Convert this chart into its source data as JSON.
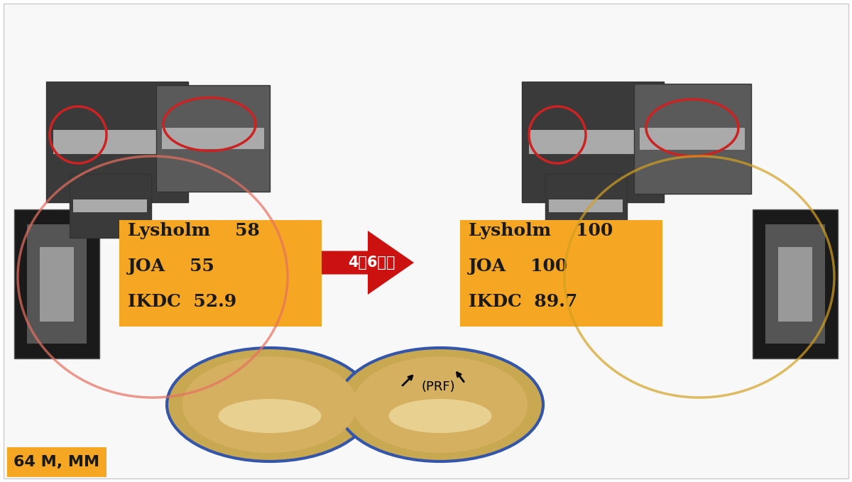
{
  "bg_color": "#ffffff",
  "label_box_color": "#f5a623",
  "label_text": "64 M, MM",
  "label_text_color": "#1a1a1a",
  "before_box_color": "#f5a623",
  "after_box_color": "#f5a623",
  "before_lines": [
    "IKDC  52.9",
    "JOA    55",
    "Lysholm    58"
  ],
  "after_lines": [
    "IKDC  89.7",
    "JOA    100",
    "Lysholm    100"
  ],
  "arrow_label": "4年6ヶ月",
  "arrow_color": "#cc1111",
  "arrow_label_color": "#ffffff",
  "box_text_color": "#1a1a1a",
  "prf_label": "(PRF)",
  "circle_color_left": "#e87060",
  "circle_color_right": "#d4a020",
  "slide_bg": "#f0f0f0"
}
